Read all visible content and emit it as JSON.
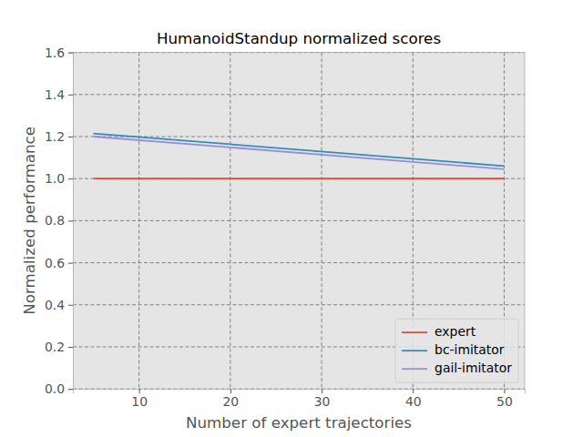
{
  "chart_data": {
    "type": "line",
    "title": "HumanoidStandup normalized scores",
    "x_label": "Number of expert trajectories",
    "y_label": "Normalized performance",
    "x": [
      5,
      50
    ],
    "series": [
      {
        "name": "expert",
        "color": "#E24A33",
        "values": [
          1.0,
          1.0
        ]
      },
      {
        "name": "bc-imitator",
        "color": "#348ABD",
        "values": [
          1.215,
          1.06
        ]
      },
      {
        "name": "gail-imitator",
        "color": "#988ED5",
        "values": [
          1.2,
          1.045
        ]
      }
    ],
    "xlim": [
      2.75,
      52.25
    ],
    "ylim": [
      0,
      1.6
    ],
    "xticks": [
      10,
      20,
      30,
      40,
      50
    ],
    "yticks": [
      {
        "value": 0,
        "label": "0.0"
      },
      {
        "value": 0.2,
        "label": "0.2"
      },
      {
        "value": 0.4,
        "label": "0.4"
      },
      {
        "value": 0.6,
        "label": "0.6"
      },
      {
        "value": 0.8,
        "label": "0.8"
      },
      {
        "value": 1.0,
        "label": "1.0"
      },
      {
        "value": 1.2,
        "label": "1.2"
      },
      {
        "value": 1.4,
        "label": "1.4"
      },
      {
        "value": 1.6,
        "label": "1.6"
      }
    ],
    "grid": true,
    "legend": "lower right"
  }
}
